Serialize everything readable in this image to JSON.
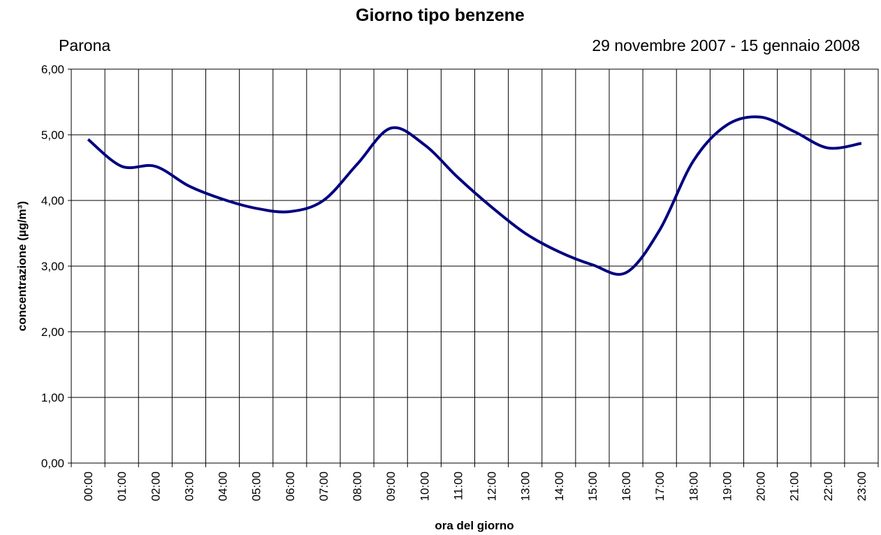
{
  "chart_data": {
    "type": "line",
    "title": "Giorno tipo benzene",
    "subtitle_left": "Parona",
    "subtitle_right": "29 novembre 2007 - 15 gennaio 2008",
    "x_label": "ora del giorno",
    "y_label": "concentrazione (µg/m³)",
    "categories": [
      "00:00",
      "01:00",
      "02:00",
      "03:00",
      "04:00",
      "05:00",
      "06:00",
      "07:00",
      "08:00",
      "09:00",
      "10:00",
      "11:00",
      "12:00",
      "13:00",
      "14:00",
      "15:00",
      "16:00",
      "17:00",
      "18:00",
      "19:00",
      "20:00",
      "21:00",
      "22:00",
      "23:00"
    ],
    "series": [
      {
        "name": "benzene",
        "color": "#000080",
        "values": [
          4.93,
          4.52,
          4.52,
          4.22,
          4.02,
          3.88,
          3.83,
          4.0,
          4.55,
          5.1,
          4.85,
          4.35,
          3.9,
          3.5,
          3.22,
          3.02,
          2.9,
          3.55,
          4.6,
          5.15,
          5.27,
          5.05,
          4.8,
          4.87
        ]
      }
    ],
    "ylim": [
      0,
      6
    ],
    "yticks": [
      {
        "value": 0,
        "label": "0,00"
      },
      {
        "value": 1,
        "label": "1,00"
      },
      {
        "value": 2,
        "label": "2,00"
      },
      {
        "value": 3,
        "label": "3,00"
      },
      {
        "value": 4,
        "label": "4,00"
      },
      {
        "value": 5,
        "label": "5,00"
      },
      {
        "value": 6,
        "label": "6,00"
      }
    ],
    "grid": true,
    "smooth": true
  }
}
